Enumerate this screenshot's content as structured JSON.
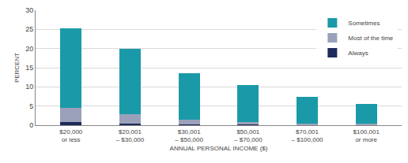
{
  "chart_data": {
    "type": "bar",
    "stacked": true,
    "categories": [
      "$20,000\nor less",
      "$20,001\n– $30,000",
      "$30,001\n– $50,000",
      "$50,001\n– $70,000",
      "$70,001\n– $100,000",
      "$100,001\nor more"
    ],
    "series": [
      {
        "name": "Always",
        "color": "#1f2a5c",
        "values": [
          0.8,
          0.5,
          0.2,
          0.2,
          0.1,
          0.1
        ]
      },
      {
        "name": "Most of the time",
        "color": "#9ba1bb",
        "values": [
          3.8,
          2.3,
          1.3,
          0.6,
          0.3,
          0.4
        ]
      },
      {
        "name": "Sometimes",
        "color": "#1a9aa8",
        "values": [
          20.7,
          17.2,
          12.0,
          9.7,
          7.1,
          5.0
        ]
      }
    ],
    "xlabel": "ANNUAL PERSONAL INCOME ($)",
    "ylabel": "PERCENT",
    "ylim": [
      0,
      30
    ],
    "yticks": [
      0,
      5,
      10,
      15,
      20,
      25,
      30
    ],
    "grid": true,
    "legend": "top right"
  }
}
